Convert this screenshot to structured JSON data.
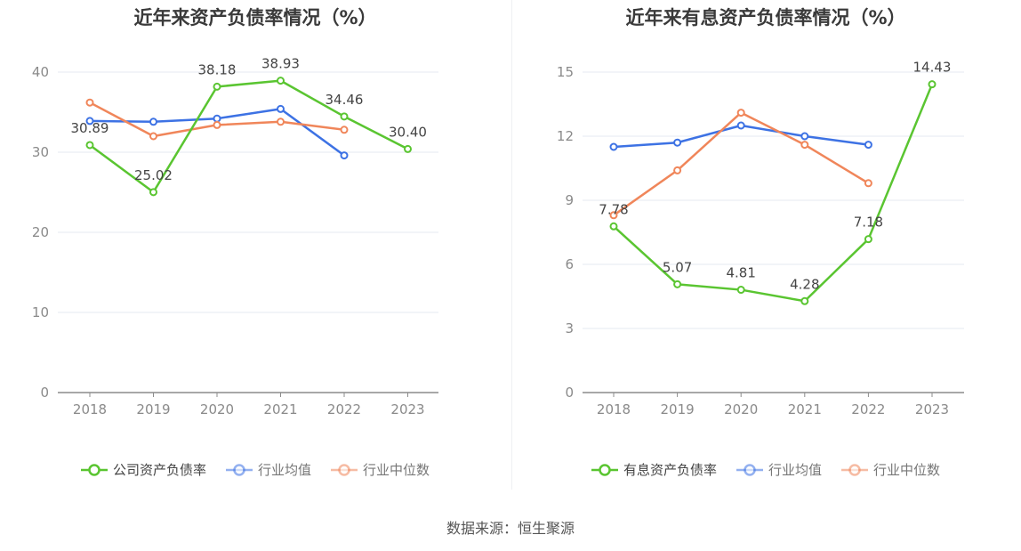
{
  "footer": {
    "source_text": "数据来源：恒生聚源"
  },
  "chart_data": [
    {
      "type": "line",
      "title": "近年来资产负债率情况（%）",
      "categories": [
        "2018",
        "2019",
        "2020",
        "2021",
        "2022",
        "2023"
      ],
      "ylim": [
        0,
        40
      ],
      "yticks": [
        0,
        10,
        20,
        30,
        40
      ],
      "grid": true,
      "legend_position": "bottom-center",
      "series": [
        {
          "name": "公司资产负债率",
          "color": "#5ac531",
          "values": [
            30.89,
            25.02,
            38.18,
            38.93,
            34.46,
            30.4
          ],
          "labels": [
            "30.89",
            "25.02",
            "38.18",
            "38.93",
            "34.46",
            "30.40"
          ]
        },
        {
          "name": "行业均值",
          "color": "#3d72e4",
          "values": [
            33.9,
            33.8,
            34.2,
            35.4,
            29.6,
            null
          ]
        },
        {
          "name": "行业中位数",
          "color": "#f0865a",
          "values": [
            36.2,
            32.0,
            33.4,
            33.8,
            32.8,
            null
          ]
        }
      ]
    },
    {
      "type": "line",
      "title": "近年来有息资产负债率情况（%）",
      "categories": [
        "2018",
        "2019",
        "2020",
        "2021",
        "2022",
        "2023"
      ],
      "ylim": [
        0,
        15
      ],
      "yticks": [
        0,
        3,
        6,
        9,
        12,
        15
      ],
      "grid": true,
      "legend_position": "bottom-center",
      "series": [
        {
          "name": "有息资产负债率",
          "color": "#5ac531",
          "values": [
            7.78,
            5.07,
            4.81,
            4.28,
            7.18,
            14.43
          ],
          "labels": [
            "7.78",
            "5.07",
            "4.81",
            "4.28",
            "7.18",
            "14.43"
          ]
        },
        {
          "name": "行业均值",
          "color": "#3d72e4",
          "values": [
            11.5,
            11.7,
            12.5,
            12.0,
            11.6,
            null
          ]
        },
        {
          "name": "行业中位数",
          "color": "#f0865a",
          "values": [
            8.3,
            10.4,
            13.1,
            11.6,
            9.8,
            null
          ]
        }
      ]
    }
  ]
}
